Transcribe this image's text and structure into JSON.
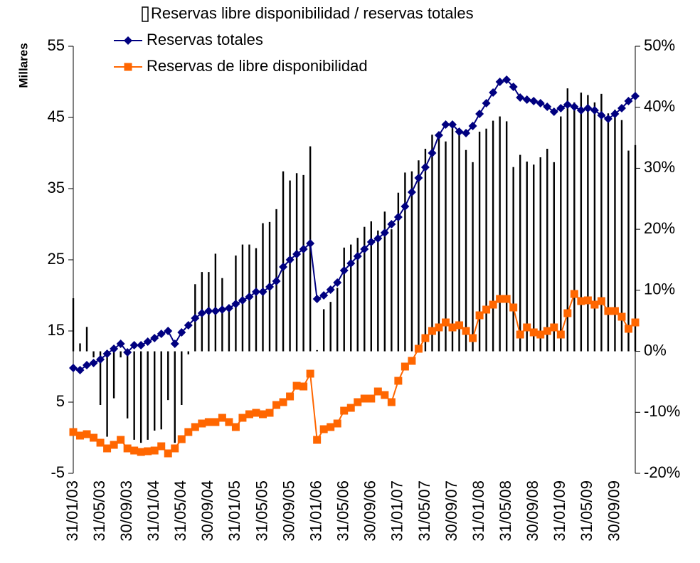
{
  "chart_data": {
    "type": "bar-line",
    "ylabel": "Millares",
    "categories": [
      "31/01/03",
      null,
      null,
      null,
      "31/05/03",
      null,
      null,
      null,
      "30/09/03",
      null,
      null,
      null,
      "31/01/04",
      null,
      null,
      null,
      "31/05/04",
      null,
      null,
      null,
      "30/09/04",
      null,
      null,
      null,
      "31/01/05",
      null,
      null,
      null,
      "31/05/05",
      null,
      null,
      null,
      "30/09/05",
      null,
      null,
      null,
      "31/01/06",
      null,
      null,
      null,
      "31/05/06",
      null,
      null,
      null,
      "30/09/06",
      null,
      null,
      null,
      "31/01/07",
      null,
      null,
      null,
      "31/05/07",
      null,
      null,
      null,
      "30/09/07",
      null,
      null,
      null,
      "31/01/08",
      null,
      null,
      null,
      "31/05/08",
      null,
      null,
      null,
      "30/09/08",
      null,
      null,
      null,
      "31/01/09",
      null,
      null,
      null,
      "31/05/09",
      null,
      null,
      null,
      "30/09/09",
      null,
      null,
      null
    ],
    "series": [
      {
        "name": "Reservas libre disponibilidad / reservas totales",
        "kind": "bar",
        "axis": "y2",
        "color": "#000000",
        "values": [
          8.7,
          1.3,
          4,
          -1,
          -8.8,
          -14,
          -7.7,
          -1,
          -11,
          -14.5,
          -15,
          -14.5,
          -13,
          -12.8,
          -8,
          -15,
          -8.8,
          -0.5,
          11,
          13,
          13,
          16,
          12,
          7,
          15.7,
          17.5,
          17.5,
          16.9,
          21,
          21.2,
          23.3,
          29.5,
          28,
          29.2,
          28.9,
          33.6,
          0.2,
          6.9,
          8.1,
          10.4,
          17,
          17.5,
          18.6,
          20.4,
          21.3,
          19.8,
          22.9,
          20,
          26,
          29.3,
          29.5,
          31.3,
          33.2,
          35.5,
          36,
          34.4,
          36.9,
          35.9,
          33,
          31,
          36,
          36.5,
          37.8,
          38.5,
          37.7,
          30.2,
          32.2,
          31.1,
          30.6,
          31.8,
          33.2,
          31,
          38.5,
          43.1,
          40.8,
          42.4,
          42,
          40.8,
          42.2,
          39,
          39.6,
          37.9,
          32.9,
          33.8
        ]
      },
      {
        "name": "Reservas totales",
        "kind": "line",
        "marker": "diamond",
        "color": "#000080",
        "values": [
          9.8,
          9.5,
          10.2,
          10.5,
          11,
          11.8,
          12.5,
          13.2,
          12,
          13,
          13,
          13.5,
          14,
          14.6,
          15,
          13.2,
          14.8,
          15.8,
          16.8,
          17.5,
          17.8,
          17.8,
          18,
          18.2,
          18.8,
          19.3,
          19.8,
          20.5,
          20.5,
          21.2,
          22,
          24,
          25,
          25.8,
          26.5,
          27.3,
          19.5,
          20,
          20.8,
          21.8,
          23.5,
          24.5,
          25.5,
          26.5,
          27.5,
          28,
          28.8,
          30,
          31,
          32.5,
          34.5,
          36.5,
          38,
          40,
          42.5,
          44,
          44,
          43,
          42.8,
          43.8,
          45.5,
          47,
          48.5,
          50,
          50.3,
          49.3,
          47.8,
          47.5,
          47.3,
          47,
          46.5,
          45.8,
          46.3,
          46.8,
          46.5,
          46,
          46.3,
          46,
          45.3,
          44.8,
          45.5,
          46.3,
          47.3,
          48
        ]
      },
      {
        "name": "Reservas de libre disponibilidad",
        "kind": "line",
        "marker": "square",
        "color": "#ff6600",
        "values": [
          0.8,
          0.3,
          0.5,
          0,
          -0.7,
          -1.5,
          -1,
          -0.3,
          -1.5,
          -1.8,
          -2,
          -1.9,
          -1.8,
          -1.2,
          -2.2,
          -1.5,
          -0.2,
          0.8,
          1.5,
          2,
          2.2,
          2.2,
          2.8,
          2.2,
          1.5,
          2.8,
          3.3,
          3.5,
          3.3,
          3.5,
          4.6,
          5,
          5.8,
          7.3,
          7.2,
          9,
          -0.3,
          1.2,
          1.5,
          2,
          3.8,
          4.2,
          5,
          5.5,
          5.5,
          6.5,
          6,
          5,
          8,
          10,
          10.8,
          12.5,
          14,
          15,
          15.5,
          16.2,
          15.5,
          15.8,
          15,
          14,
          17.2,
          18,
          18.7,
          19.5,
          19.5,
          18.3,
          14.5,
          15.5,
          14.8,
          14.5,
          15,
          15.5,
          14.5,
          17.5,
          20.2,
          19.2,
          19.3,
          18.7,
          19.2,
          17.8,
          17.8,
          17,
          15.3,
          16.2
        ]
      }
    ],
    "ylim": [
      -5,
      55
    ],
    "yticks": [
      -5,
      5,
      15,
      25,
      35,
      45,
      55
    ],
    "y2lim": [
      -20,
      50
    ],
    "y2ticks": [
      {
        "value": -20,
        "label": "-20%"
      },
      {
        "value": -10,
        "label": "-10%"
      },
      {
        "value": 0,
        "label": "0%"
      },
      {
        "value": 10,
        "label": "10%"
      },
      {
        "value": 20,
        "label": "20%"
      },
      {
        "value": 30,
        "label": "30%"
      },
      {
        "value": 40,
        "label": "40%"
      },
      {
        "value": 50,
        "label": "50%"
      }
    ],
    "legend": "top"
  }
}
